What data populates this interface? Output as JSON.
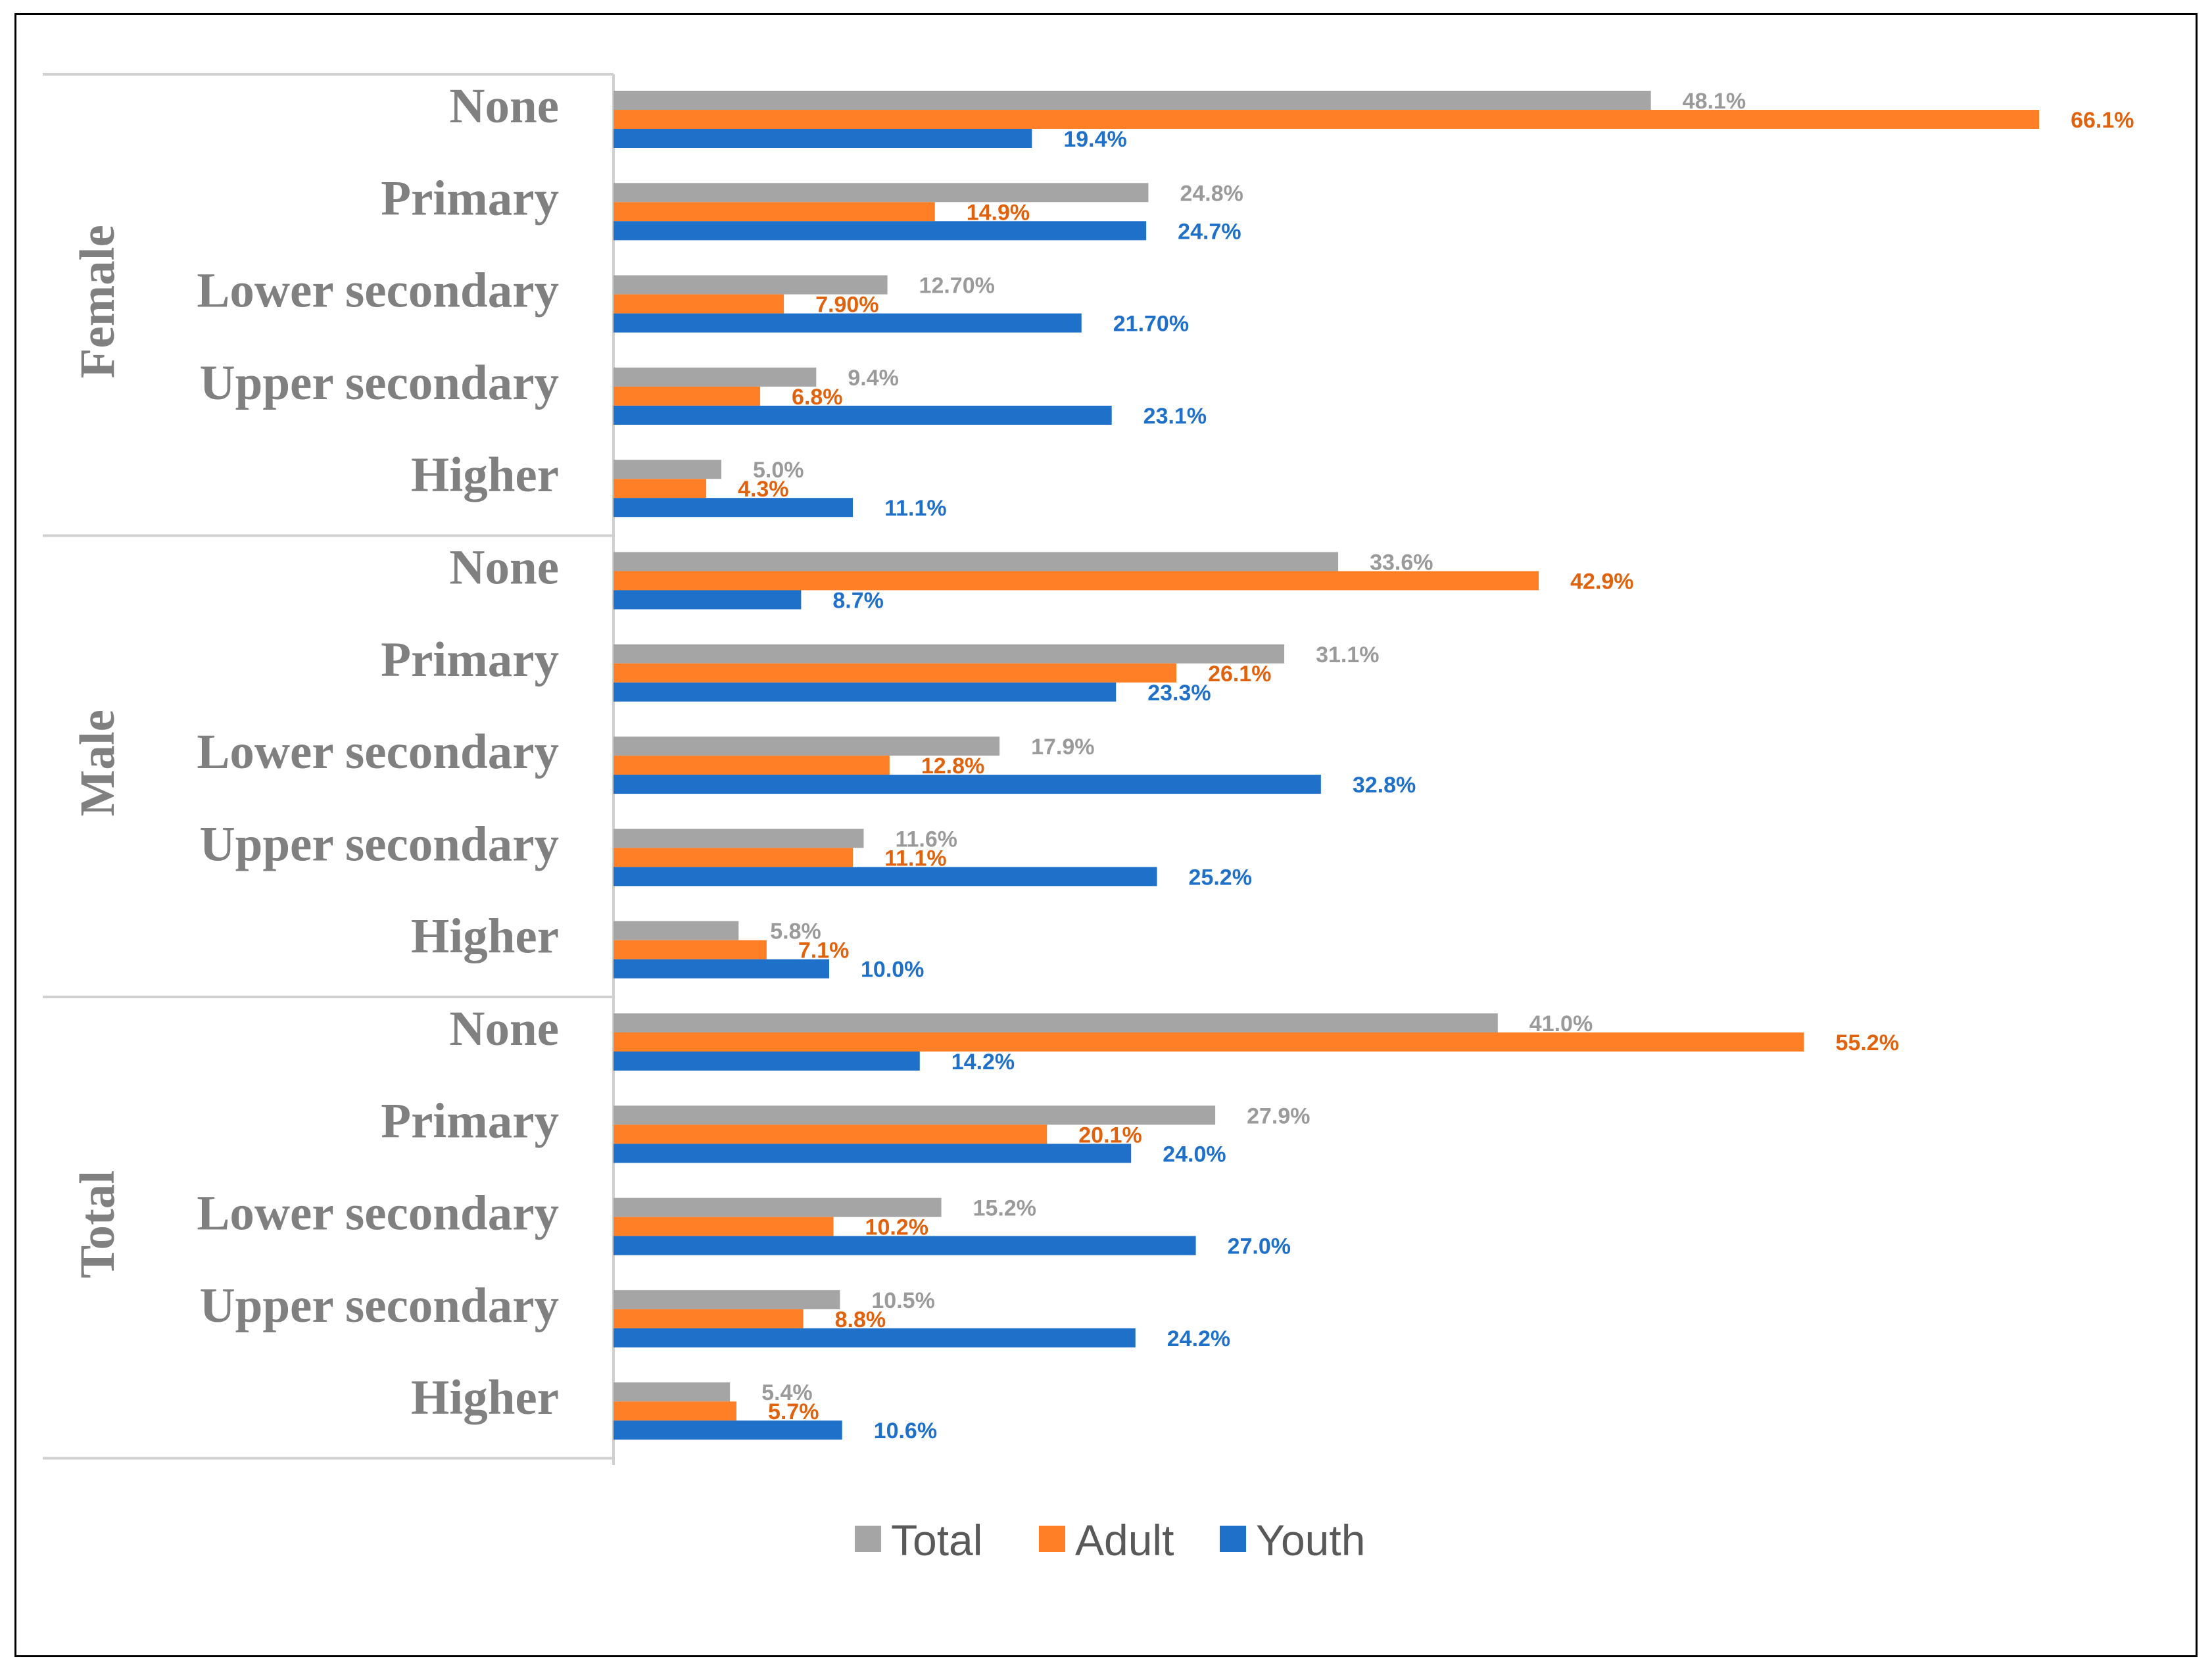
{
  "chart_data": {
    "type": "bar",
    "orientation": "horizontal",
    "title": "",
    "xlabel": "",
    "ylabel": "",
    "xlim": [
      0,
      70
    ],
    "grid": false,
    "legend_position": "bottom",
    "colors": {
      "Total": "#a5a5a5",
      "Adult": "#ff7f27",
      "Youth": "#1f70c8"
    },
    "label_colors": {
      "Total": "#9a9a9a",
      "Adult": "#e0620d",
      "Youth": "#1f70c8"
    },
    "legend": [
      "Total",
      "Adult",
      "Youth"
    ],
    "groups": [
      {
        "name": "Female",
        "categories": [
          {
            "label": "None",
            "values": {
              "Total": 48.1,
              "Adult": 66.1,
              "Youth": 19.4
            },
            "labels": {
              "Total": "48.1%",
              "Adult": "66.1%",
              "Youth": "19.4%"
            }
          },
          {
            "label": "Primary",
            "values": {
              "Total": 24.8,
              "Adult": 14.9,
              "Youth": 24.7
            },
            "labels": {
              "Total": "24.8%",
              "Adult": "14.9%",
              "Youth": "24.7%"
            }
          },
          {
            "label": "Lower secondary",
            "values": {
              "Total": 12.7,
              "Adult": 7.9,
              "Youth": 21.7
            },
            "labels": {
              "Total": "12.70%",
              "Adult": "7.90%",
              "Youth": "21.70%"
            }
          },
          {
            "label": "Upper secondary",
            "values": {
              "Total": 9.4,
              "Adult": 6.8,
              "Youth": 23.1
            },
            "labels": {
              "Total": "9.4%",
              "Adult": "6.8%",
              "Youth": "23.1%"
            }
          },
          {
            "label": "Higher",
            "values": {
              "Total": 5.0,
              "Adult": 4.3,
              "Youth": 11.1
            },
            "labels": {
              "Total": "5.0%",
              "Adult": "4.3%",
              "Youth": "11.1%"
            }
          }
        ]
      },
      {
        "name": "Male",
        "categories": [
          {
            "label": "None",
            "values": {
              "Total": 33.6,
              "Adult": 42.9,
              "Youth": 8.7
            },
            "labels": {
              "Total": "33.6%",
              "Adult": "42.9%",
              "Youth": "8.7%"
            }
          },
          {
            "label": "Primary",
            "values": {
              "Total": 31.1,
              "Adult": 26.1,
              "Youth": 23.3
            },
            "labels": {
              "Total": "31.1%",
              "Adult": "26.1%",
              "Youth": "23.3%"
            }
          },
          {
            "label": "Lower secondary",
            "values": {
              "Total": 17.9,
              "Adult": 12.8,
              "Youth": 32.8
            },
            "labels": {
              "Total": "17.9%",
              "Adult": "12.8%",
              "Youth": "32.8%"
            }
          },
          {
            "label": "Upper secondary",
            "values": {
              "Total": 11.6,
              "Adult": 11.1,
              "Youth": 25.2
            },
            "labels": {
              "Total": "11.6%",
              "Adult": "11.1%",
              "Youth": "25.2%"
            }
          },
          {
            "label": "Higher",
            "values": {
              "Total": 5.8,
              "Adult": 7.1,
              "Youth": 10.0
            },
            "labels": {
              "Total": "5.8%",
              "Adult": "7.1%",
              "Youth": "10.0%"
            }
          }
        ]
      },
      {
        "name": "Total",
        "categories": [
          {
            "label": "None",
            "values": {
              "Total": 41.0,
              "Adult": 55.2,
              "Youth": 14.2
            },
            "labels": {
              "Total": "41.0%",
              "Adult": "55.2%",
              "Youth": "14.2%"
            }
          },
          {
            "label": "Primary",
            "values": {
              "Total": 27.9,
              "Adult": 20.1,
              "Youth": 24.0
            },
            "labels": {
              "Total": "27.9%",
              "Adult": "20.1%",
              "Youth": "24.0%"
            }
          },
          {
            "label": "Lower secondary",
            "values": {
              "Total": 15.2,
              "Adult": 10.2,
              "Youth": 27.0
            },
            "labels": {
              "Total": "15.2%",
              "Adult": "10.2%",
              "Youth": "27.0%"
            }
          },
          {
            "label": "Upper secondary",
            "values": {
              "Total": 10.5,
              "Adult": 8.8,
              "Youth": 24.2
            },
            "labels": {
              "Total": "10.5%",
              "Adult": "8.8%",
              "Youth": "24.2%"
            }
          },
          {
            "label": "Higher",
            "values": {
              "Total": 5.4,
              "Adult": 5.7,
              "Youth": 10.6
            },
            "labels": {
              "Total": "5.4%",
              "Adult": "5.7%",
              "Youth": "10.6%"
            }
          }
        ]
      }
    ]
  }
}
